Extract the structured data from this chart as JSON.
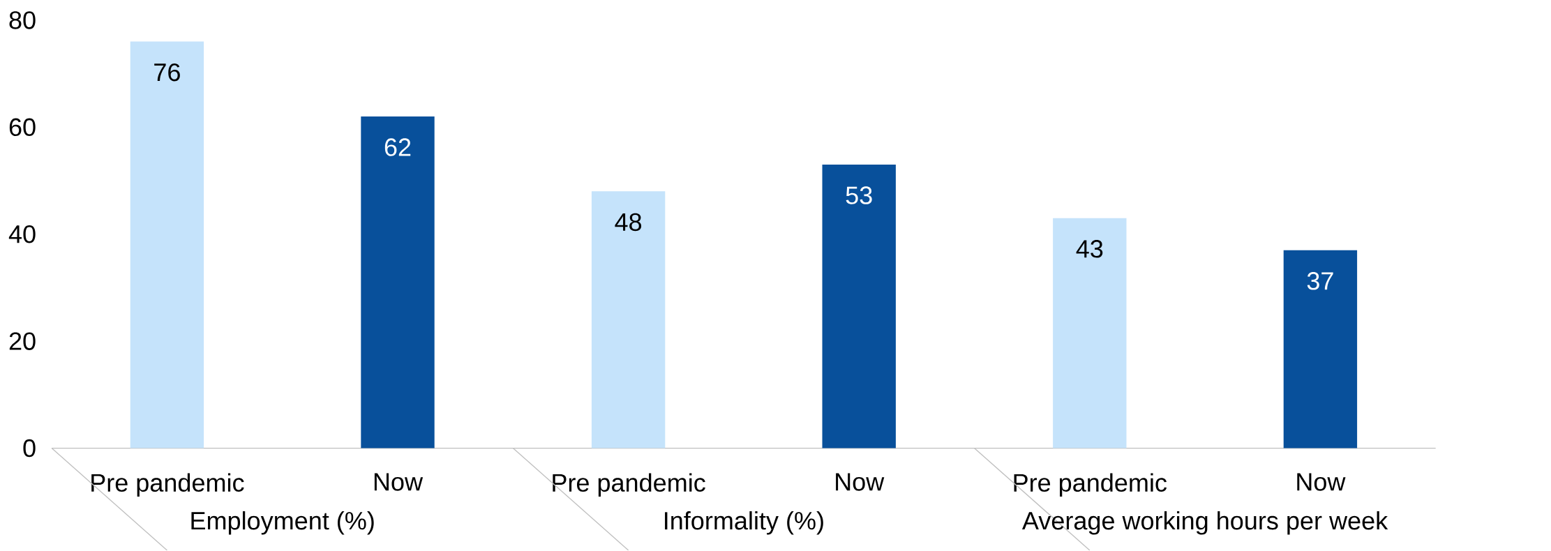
{
  "chart_data": {
    "type": "bar",
    "categories": [
      "Pre pandemic",
      "Now",
      "Pre pandemic",
      "Now",
      "Pre pandemic",
      "Now"
    ],
    "values": [
      76,
      62,
      48,
      53,
      43,
      37
    ],
    "colors": [
      "#c5e3fb",
      "#08509b",
      "#c5e3fb",
      "#08509b",
      "#c5e3fb",
      "#08509b"
    ],
    "ylim": [
      0,
      80
    ],
    "yticks": [
      0,
      20,
      40,
      60,
      80
    ],
    "data_labels": true,
    "annotations": [
      "Employment (%)",
      "Informality (%)",
      "Average working hours per week"
    ]
  }
}
